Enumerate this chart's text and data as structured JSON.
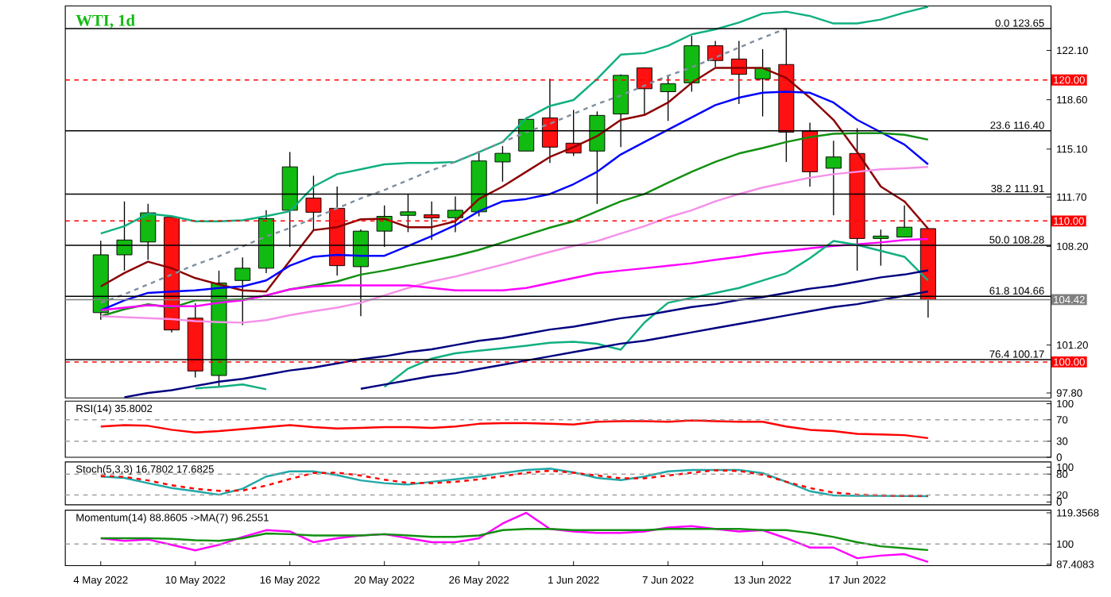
{
  "chart_data": [
    {
      "type": "candlestick",
      "title": "WTI, 1d",
      "categories": [
        null,
        null,
        null,
        null,
        null,
        null,
        null,
        null,
        null,
        null,
        null,
        null,
        null,
        null,
        null,
        null,
        null,
        null,
        null,
        null,
        null,
        null,
        null,
        null,
        null,
        null,
        null,
        null,
        null,
        null,
        null,
        null,
        null,
        null,
        null,
        null
      ],
      "ohlc": [
        [
          103.5,
          108.6,
          103.0,
          107.6
        ],
        [
          107.6,
          111.39,
          106.48,
          108.65
        ],
        [
          108.51,
          111.21,
          107.25,
          110.58
        ],
        [
          110.26,
          110.3,
          102.1,
          102.27
        ],
        [
          103.11,
          104.16,
          98.9,
          99.36
        ],
        [
          99.04,
          106.48,
          98.24,
          105.6
        ],
        [
          105.78,
          107.42,
          102.62,
          106.65
        ],
        [
          106.65,
          110.76,
          106.3,
          110.16
        ],
        [
          110.76,
          114.89,
          108.16,
          113.84
        ],
        [
          111.63,
          113.21,
          109.35,
          110.62
        ],
        [
          110.9,
          112.44,
          106.13,
          106.83
        ],
        [
          106.76,
          109.4,
          103.25,
          109.28
        ],
        [
          109.28,
          111.11,
          108.16,
          110.33
        ],
        [
          110.4,
          111.91,
          109.21,
          110.65
        ],
        [
          110.44,
          111.39,
          108.65,
          110.22
        ],
        [
          110.23,
          111.74,
          109.21,
          110.76
        ],
        [
          110.65,
          114.89,
          110.33,
          114.26
        ],
        [
          114.19,
          115.31,
          112.79,
          114.8
        ],
        [
          114.96,
          117.35,
          114.96,
          117.21
        ],
        [
          117.31,
          120.08,
          114.12,
          115.24
        ],
        [
          115.52,
          117.87,
          114.61,
          114.82
        ],
        [
          114.96,
          117.77,
          111.21,
          117.49
        ],
        [
          117.59,
          120.4,
          115.24,
          120.33
        ],
        [
          120.86,
          120.9,
          117.52,
          119.38
        ],
        [
          119.17,
          120.33,
          117.1,
          119.73
        ],
        [
          119.8,
          123.13,
          119.17,
          122.43
        ],
        [
          122.43,
          122.78,
          120.93,
          121.38
        ],
        [
          121.49,
          122.78,
          118.3,
          120.4
        ],
        [
          120.08,
          122.19,
          117.42,
          120.86
        ],
        [
          121.1,
          123.65,
          114.19,
          116.3
        ],
        [
          116.37,
          116.98,
          112.44,
          113.49
        ],
        [
          113.74,
          115.7,
          110.4,
          114.54
        ],
        [
          114.79,
          116.58,
          106.48,
          108.76
        ],
        [
          108.76,
          109.39,
          106.83,
          108.93
        ],
        [
          108.86,
          111.11,
          108.86,
          109.56
        ],
        [
          109.46,
          109.5,
          103.15,
          104.42
        ]
      ],
      "colors": [
        "#11bb11",
        "#11bb11",
        "#11bb11",
        "#ff1111",
        "#ff1111",
        "#11bb11",
        "#11bb11",
        "#11bb11",
        "#11bb11",
        "#ff1111",
        "#ff1111",
        "#11bb11",
        "#11bb11",
        "#11bb11",
        "#ff1111",
        "#11bb11",
        "#11bb11",
        "#11bb11",
        "#11bb11",
        "#ff1111",
        "#ff1111",
        "#11bb11",
        "#11bb11",
        "#ff1111",
        "#11bb11",
        "#11bb11",
        "#ff1111",
        "#ff1111",
        "#11bb11",
        "#ff1111",
        "#ff1111",
        "#11bb11",
        "#ff1111",
        "#11bb11",
        "#11bb11",
        "#ff1111"
      ],
      "series": [
        {
          "type": "line",
          "color": "#8b0000",
          "values": [
            105.36,
            106.31,
            107.11,
            106.65,
            105.95,
            105.5,
            105.08,
            105.0,
            107.18,
            109.35,
            109.56,
            110.12,
            110.16,
            109.56,
            109.56,
            109.98,
            111.56,
            112.44,
            113.49,
            114.54,
            115.24,
            116.02,
            117.17,
            117.52,
            118.4,
            119.8,
            120.86,
            120.86,
            120.86,
            120.15,
            118.75,
            117.17,
            114.89,
            112.44,
            111.39,
            109.46
          ]
        },
        {
          "type": "line",
          "color": "#0000ff",
          "values": [
            103.67,
            104.37,
            104.9,
            105.0,
            105.08,
            105.25,
            105.36,
            105.78,
            106.83,
            107.46,
            107.6,
            107.53,
            107.53,
            108.23,
            108.93,
            109.7,
            110.69,
            111.39,
            111.56,
            111.91,
            112.61,
            113.49,
            114.72,
            115.6,
            116.47,
            117.35,
            118.22,
            118.75,
            119.1,
            119.17,
            119.1,
            118.4,
            117.17,
            116.3,
            115.42,
            114.02
          ]
        },
        {
          "type": "line",
          "color": "#119011",
          "values": [
            103.25,
            103.74,
            104.09,
            103.85,
            104.37,
            104.37,
            104.44,
            104.72,
            105.15,
            105.43,
            105.71,
            106.2,
            106.48,
            106.83,
            107.18,
            107.53,
            107.95,
            108.48,
            109.0,
            109.53,
            109.98,
            110.69,
            111.39,
            111.91,
            112.72,
            113.49,
            114.19,
            114.79,
            115.17,
            115.6,
            115.95,
            116.19,
            116.23,
            116.23,
            116.12,
            115.77
          ]
        },
        {
          "type": "line",
          "color": "#f590e8",
          "values": [
            103.25,
            103.18,
            103.11,
            103.04,
            102.9,
            102.83,
            102.79,
            102.97,
            103.32,
            103.6,
            103.85,
            104.2,
            104.72,
            105.25,
            105.71,
            106.06,
            106.48,
            106.9,
            107.36,
            107.81,
            108.23,
            108.58,
            109.11,
            109.63,
            110.26,
            110.76,
            111.39,
            111.91,
            112.37,
            112.72,
            113.07,
            113.32,
            113.49,
            113.67,
            113.74,
            113.84
          ]
        },
        {
          "type": "line",
          "color": "#ff00ff",
          "values": [
            103.67,
            103.85,
            104.02,
            103.95,
            103.95,
            104.2,
            104.37,
            104.72,
            105.15,
            105.36,
            105.43,
            105.43,
            105.43,
            105.43,
            105.25,
            105.08,
            105.08,
            105.08,
            105.25,
            105.6,
            105.95,
            106.3,
            106.48,
            106.65,
            106.83,
            107.0,
            107.25,
            107.46,
            107.71,
            107.88,
            108.06,
            108.23,
            108.34,
            108.48,
            108.65,
            108.72
          ]
        },
        {
          "type": "line",
          "color": "#10b080",
          "values": [
            109.11,
            109.63,
            110.51,
            110.34,
            109.98,
            109.98,
            110.05,
            110.34,
            110.69,
            112.44,
            113.32,
            113.67,
            114.02,
            114.12,
            114.12,
            114.19,
            114.89,
            115.6,
            117.28,
            118.16,
            118.58,
            120.08,
            121.8,
            121.91,
            122.43,
            123.24,
            123.59,
            124.08,
            124.71,
            124.85,
            124.54,
            124.01,
            124.01,
            124.29,
            124.78,
            125.2
          ]
        },
        {
          "type": "line",
          "color": "#10b080",
          "values": [
            null,
            null,
            null,
            null,
            98.13,
            98.24,
            98.41,
            98.06,
            null,
            null,
            null,
            null,
            98.24,
            99.53,
            100.24,
            100.62,
            100.8,
            100.97,
            101.15,
            101.36,
            101.43,
            101.29,
            100.87,
            102.8,
            104.2,
            104.55,
            104.9,
            105.25,
            105.78,
            106.3,
            107.36,
            108.58,
            108.3,
            107.88,
            107.46,
            105.78
          ]
        },
        {
          "type": "line",
          "color": "#000080",
          "values": [
            null,
            97.5,
            97.8,
            98.0,
            98.3,
            98.6,
            98.8,
            99.1,
            99.4,
            99.6,
            99.9,
            100.2,
            100.4,
            100.7,
            100.9,
            101.2,
            101.5,
            101.7,
            102.0,
            102.3,
            102.5,
            102.8,
            103.1,
            103.3,
            103.6,
            103.9,
            104.1,
            104.4,
            104.6,
            104.9,
            105.2,
            105.4,
            105.7,
            106.0,
            106.2,
            106.5
          ]
        },
        {
          "type": "line",
          "color": "#000080",
          "values": [
            null,
            null,
            null,
            null,
            null,
            null,
            null,
            null,
            null,
            null,
            null,
            98.1,
            98.4,
            98.7,
            99.0,
            99.2,
            99.5,
            99.8,
            100.1,
            100.4,
            100.7,
            101.0,
            101.3,
            101.5,
            101.8,
            102.1,
            102.4,
            102.7,
            103.0,
            103.3,
            103.6,
            103.9,
            104.1,
            104.4,
            104.7,
            105.0
          ]
        },
        {
          "type": "line",
          "color": "#8090a0",
          "line_style": "dashed",
          "values": [
            104.2,
            104.8,
            105.5,
            106.2,
            106.9,
            107.5,
            108.2,
            108.9,
            109.5,
            110.2,
            110.9,
            111.6,
            112.2,
            112.9,
            113.6,
            114.2,
            114.9,
            115.6,
            116.3,
            116.9,
            117.6,
            118.3,
            118.9,
            119.6,
            120.3,
            120.9,
            121.6,
            122.3,
            123.0,
            123.65,
            null,
            null,
            null,
            null,
            null,
            null
          ]
        }
      ],
      "ref_lines": [
        {
          "axis": "y",
          "value": 123.65,
          "color": "#000000"
        },
        {
          "axis": "y",
          "value": 116.4,
          "color": "#000000"
        },
        {
          "axis": "y",
          "value": 111.91,
          "color": "#000000"
        },
        {
          "axis": "y",
          "value": 108.28,
          "color": "#000000"
        },
        {
          "axis": "y",
          "value": 104.66,
          "color": "#000000"
        },
        {
          "axis": "y",
          "value": 100.17,
          "color": "#000000"
        },
        {
          "axis": "y",
          "value": 120,
          "label": "120.00",
          "color": "#ff0000",
          "line_style": "dashed"
        },
        {
          "axis": "y",
          "value": 110,
          "label": "110.00",
          "color": "#ff0000",
          "line_style": "dashed"
        },
        {
          "axis": "y",
          "value": 100,
          "label": "100.00",
          "color": "#ff0000",
          "line_style": "dashed"
        },
        {
          "axis": "y",
          "value": 104.42,
          "label": "104.42",
          "color": "#808080"
        }
      ],
      "annotations": [
        {
          "text": "0.0 123.65",
          "y": 123.65
        },
        {
          "text": "23.6 116.40",
          "y": 116.4
        },
        {
          "text": "38.2 111.91",
          "y": 111.91
        },
        {
          "text": "50.0 108.28",
          "y": 108.28
        },
        {
          "text": "61.8 104.66",
          "y": 104.66
        },
        {
          "text": "76.4 100.17",
          "y": 100.17
        }
      ],
      "ylim": [
        97.45,
        125.25
      ],
      "yticks": [
        {
          "value": 97.8,
          "label": "97.80"
        },
        {
          "value": 101.2,
          "label": "101.20"
        },
        {
          "value": 108.2,
          "label": "108.20"
        },
        {
          "value": 111.7,
          "label": "111.70"
        },
        {
          "value": 115.1,
          "label": "115.10"
        },
        {
          "value": 118.6,
          "label": "118.60"
        },
        {
          "value": 122.1,
          "label": "122.10"
        }
      ],
      "tick_labels": "y"
    },
    {
      "type": "line",
      "title": "RSI(14) 35.8002",
      "categories": [
        null,
        null,
        null,
        null,
        null,
        null,
        null,
        null,
        null,
        null,
        null,
        null,
        null,
        null,
        null,
        null,
        null,
        null,
        null,
        null,
        null,
        null,
        null,
        null,
        null,
        null,
        null,
        null,
        null,
        null,
        null,
        null,
        null,
        null,
        null,
        null
      ],
      "series": [
        {
          "color": "#ff0000",
          "values": [
            57.5,
            60,
            58.8,
            51.3,
            46.3,
            48.8,
            52.5,
            56.3,
            60,
            56.3,
            53.8,
            55,
            56.3,
            56.3,
            55,
            57.5,
            62.5,
            63.8,
            63.8,
            62.5,
            61.3,
            66.3,
            67.5,
            67.5,
            66.3,
            68.8,
            67.5,
            66.3,
            66.3,
            57.5,
            51.3,
            48.8,
            43.8,
            42.5,
            41.3,
            35.8
          ]
        }
      ],
      "ref_lines": [
        {
          "axis": "y",
          "value": 70,
          "color": "#a0a0a0",
          "line_style": "dashed"
        },
        {
          "axis": "y",
          "value": 30,
          "color": "#a0a0a0",
          "line_style": "dashed"
        }
      ],
      "ylim": [
        0,
        105
      ],
      "yticks": [
        0,
        30,
        70,
        100
      ],
      "tick_labels": "y"
    },
    {
      "type": "line",
      "title": "Stoch(5,3,3) 16.7802 17.6825",
      "categories": [
        null,
        null,
        null,
        null,
        null,
        null,
        null,
        null,
        null,
        null,
        null,
        null,
        null,
        null,
        null,
        null,
        null,
        null,
        null,
        null,
        null,
        null,
        null,
        null,
        null,
        null,
        null,
        null,
        null,
        null,
        null,
        null,
        null,
        null,
        null,
        null
      ],
      "series": [
        {
          "color": "#20a8a8",
          "values": [
            73,
            69,
            54,
            40,
            31,
            21,
            38,
            73,
            88,
            88,
            77,
            62,
            54,
            50,
            58,
            65,
            73,
            83,
            92,
            96,
            85,
            69,
            63,
            73,
            88,
            92,
            92,
            92,
            83,
            58,
            31,
            19,
            18,
            17.5,
            17,
            16.78
          ]
        },
        {
          "color": "#ff0000",
          "line_style": "dashed",
          "values": [
            75,
            72,
            62,
            48,
            38,
            32,
            33,
            47,
            66,
            83,
            84,
            76,
            64,
            55,
            54,
            58,
            65,
            74,
            84,
            90,
            84,
            76,
            68,
            68,
            76,
            84,
            91,
            89,
            78,
            58,
            40,
            27,
            21,
            19,
            18,
            17.68
          ]
        }
      ],
      "ref_lines": [
        {
          "axis": "y",
          "value": 80,
          "color": "#a0a0a0",
          "line_style": "dashed"
        },
        {
          "axis": "y",
          "value": 20,
          "color": "#a0a0a0",
          "line_style": "dashed"
        }
      ],
      "ylim": [
        -8,
        115
      ],
      "yticks": [
        0,
        20,
        80,
        100
      ],
      "tick_labels": "y"
    },
    {
      "type": "line",
      "title": "Momentum(14) 88.8605 ->MA(7) 96.2551",
      "categories": [
        "4 May 2022",
        null,
        null,
        null,
        "10 May 2022",
        null,
        null,
        null,
        "16 May 2022",
        null,
        null,
        null,
        "20 May 2022",
        null,
        null,
        null,
        "26 May 2022",
        null,
        null,
        null,
        "1 Jun 2022",
        null,
        null,
        null,
        "7 Jun 2022",
        null,
        null,
        null,
        "13 Jun 2022",
        null,
        null,
        null,
        "17 Jun 2022",
        null,
        null,
        null
      ],
      "series": [
        {
          "color": "#ff00ff",
          "values": [
            103.6,
            102.0,
            102.8,
            99.5,
            96.1,
            99.5,
            104.4,
            108.6,
            107.8,
            101.1,
            103.6,
            105.3,
            106.1,
            103.6,
            101.1,
            101.1,
            103.6,
            112.7,
            119.36,
            109.4,
            107.8,
            106.9,
            106.9,
            107.8,
            110.2,
            111.1,
            109.4,
            107.8,
            108.6,
            103.6,
            97.8,
            97.8,
            91.2,
            92.8,
            93.7,
            88.86
          ]
        },
        {
          "color": "#119011",
          "values": [
            103.6,
            103.6,
            103.6,
            103.2,
            102.4,
            102.0,
            103.6,
            106.5,
            106.1,
            105.3,
            105.3,
            105.3,
            106.1,
            105.3,
            104.4,
            104.4,
            105.3,
            108.6,
            109.4,
            109.4,
            108.6,
            108.6,
            108.6,
            108.6,
            109.4,
            109.4,
            109.4,
            109.4,
            108.6,
            108.6,
            106.9,
            104.4,
            101.1,
            98.6,
            97.4,
            96.26
          ]
        }
      ],
      "ref_lines": [
        {
          "axis": "y",
          "value": 100,
          "color": "#a0a0a0",
          "line_style": "dashed"
        }
      ],
      "ylim": [
        86.6,
        121.0
      ],
      "yticks": [
        87.4083,
        100,
        119.3568
      ]
    }
  ]
}
